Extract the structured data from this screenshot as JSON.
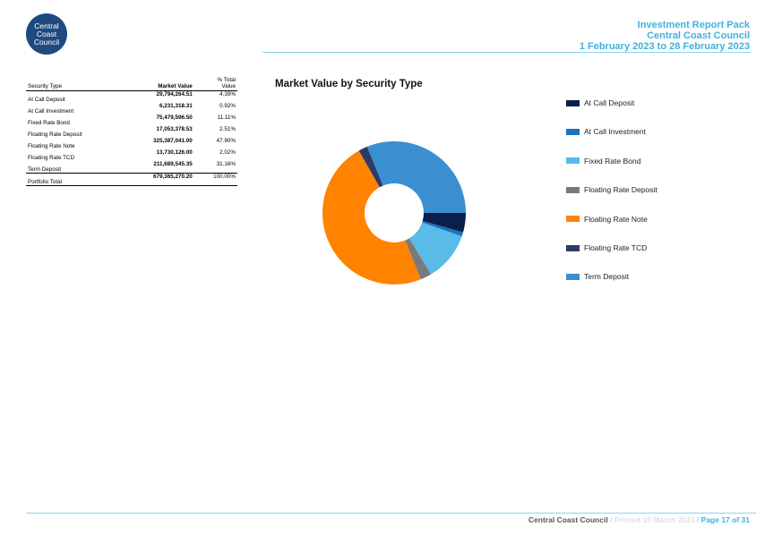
{
  "logo": {
    "lines": [
      "Central",
      "Coast",
      "Council"
    ]
  },
  "header": {
    "line1": "Investment Report Pack",
    "line2": "Central Coast Council",
    "line3": "1 February 2023 to 28 February 2023"
  },
  "table": {
    "col_type": "Security Type",
    "col_value": "Market Value",
    "col_pct_line1": "% Total",
    "col_pct_line2": "Value",
    "rows": [
      {
        "type": "At Call Deposit",
        "value": "29,794,264.51",
        "pct": "4.39%"
      },
      {
        "type": "At Call Investment",
        "value": "6,231,318.31",
        "pct": "0.92%"
      },
      {
        "type": "Fixed Rate Bond",
        "value": "75,479,596.50",
        "pct": "11.11%"
      },
      {
        "type": "Floating Rate Deposit",
        "value": "17,053,378.53",
        "pct": "2.51%"
      },
      {
        "type": "Floating Rate Note",
        "value": "325,387,041.00",
        "pct": "47.90%"
      },
      {
        "type": "Floating Rate TCD",
        "value": "13,730,126.00",
        "pct": "2.02%"
      },
      {
        "type": "Term Deposit",
        "value": "211,689,545.35",
        "pct": "31.16%"
      }
    ],
    "total": {
      "type": "Portfolio Total",
      "value": "679,365,270.20",
      "pct": "100.00%"
    }
  },
  "chart_data": {
    "type": "pie",
    "title": "Market Value by Security Type",
    "donut": true,
    "start_angle_deg": 0,
    "direction": "clockwise-from-3-oclock",
    "legend_position": "right",
    "categories": [
      "At Call Deposit",
      "At Call Investment",
      "Fixed Rate Bond",
      "Floating Rate Deposit",
      "Floating Rate Note",
      "Floating Rate TCD",
      "Term Deposit"
    ],
    "values": [
      4.39,
      0.92,
      11.11,
      2.51,
      47.9,
      2.02,
      31.16
    ],
    "colors": [
      "#0c1f4a",
      "#1a73bd",
      "#58bbe8",
      "#7a7a7a",
      "#ff8200",
      "#2e3b66",
      "#3a8fd0"
    ]
  },
  "footer": {
    "org": "Central Coast Council",
    "sep1": " / ",
    "printed": "Printed 10 March 2023",
    "sep2": " / ",
    "page": "Page 17 of 31"
  }
}
